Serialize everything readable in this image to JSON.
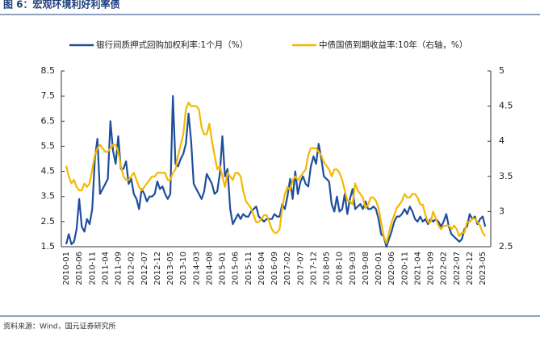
{
  "chart_data": {
    "type": "line",
    "title": "图 6：宏观环境利好利率债",
    "source": "资料来源：Wind，国元证券研究所",
    "categories": [
      "2010-01",
      null,
      null,
      null,
      null,
      "2010-06",
      null,
      null,
      null,
      null,
      "2010-11",
      null,
      null,
      null,
      null,
      "2011-04",
      null,
      null,
      null,
      null,
      "2011-09",
      null,
      null,
      null,
      null,
      "2012-02",
      null,
      null,
      null,
      null,
      "2012-07",
      null,
      null,
      null,
      null,
      "2012-12",
      null,
      null,
      null,
      null,
      "2013-05",
      null,
      null,
      null,
      null,
      "2013-10",
      null,
      null,
      null,
      null,
      "2014-03",
      null,
      null,
      null,
      null,
      "2014-08",
      null,
      null,
      null,
      null,
      "2015-01",
      null,
      null,
      null,
      null,
      "2015-06",
      null,
      null,
      null,
      null,
      "2015-11",
      null,
      null,
      null,
      null,
      "2016-04",
      null,
      null,
      null,
      null,
      "2016-09",
      null,
      null,
      null,
      null,
      "2017-02",
      null,
      null,
      null,
      null,
      "2017-07",
      null,
      null,
      null,
      null,
      "2017-12",
      null,
      null,
      null,
      null,
      "2018-05",
      null,
      null,
      null,
      null,
      "2018-10",
      null,
      null,
      null,
      null,
      "2019-03",
      null,
      null,
      null,
      null,
      "2019-08",
      null,
      null,
      null,
      null,
      "2020-01",
      null,
      null,
      null,
      null,
      "2020-06",
      null,
      null,
      null,
      null,
      "2020-11",
      null,
      null,
      null,
      null,
      "2021-04",
      null,
      null,
      null,
      null,
      "2021-09",
      null,
      null,
      null,
      null,
      "2022-02",
      null,
      null,
      null,
      null,
      "2022-07",
      null,
      null,
      null,
      null,
      "2022-12",
      null,
      null,
      null,
      null,
      "2023-05",
      null
    ],
    "series": [
      {
        "name": "银行间质押式回购加权利率:1个月（%）",
        "color": "#1f4e9c",
        "axis": "y",
        "values": [
          1.6,
          2.0,
          1.6,
          1.7,
          2.2,
          3.4,
          2.3,
          2.1,
          2.6,
          2.4,
          3.0,
          5.0,
          5.8,
          3.6,
          3.8,
          4.0,
          4.2,
          6.5,
          5.3,
          4.8,
          5.9,
          4.6,
          4.6,
          4.9,
          4.0,
          4.2,
          3.6,
          3.4,
          3.0,
          3.8,
          3.6,
          3.3,
          3.5,
          3.5,
          3.6,
          4.1,
          3.8,
          3.9,
          3.6,
          3.4,
          3.6,
          7.5,
          4.8,
          4.7,
          5.0,
          5.2,
          5.6,
          6.8,
          5.7,
          4.0,
          3.8,
          3.6,
          3.4,
          3.7,
          4.4,
          4.2,
          4.0,
          3.6,
          3.7,
          4.4,
          5.9,
          4.3,
          4.6,
          3.0,
          2.4,
          2.6,
          2.8,
          2.6,
          2.8,
          2.7,
          2.7,
          2.9,
          3.0,
          3.1,
          2.7,
          2.6,
          2.5,
          2.6,
          2.6,
          2.6,
          2.8,
          2.7,
          2.7,
          3.2,
          3.0,
          3.5,
          4.2,
          3.4,
          4.5,
          3.6,
          4.1,
          4.3,
          4.0,
          3.9,
          4.7,
          5.1,
          4.8,
          5.6,
          5.0,
          4.3,
          4.2,
          4.1,
          3.2,
          2.9,
          3.5,
          2.9,
          3.0,
          3.6,
          2.8,
          3.4,
          3.8,
          3.0,
          3.1,
          3.2,
          3.0,
          3.3,
          3.0,
          3.0,
          3.1,
          3.0,
          2.6,
          2.0,
          1.9,
          1.5,
          1.8,
          2.1,
          2.5,
          2.7,
          2.7,
          2.8,
          3.0,
          2.8,
          3.1,
          2.9,
          2.6,
          2.5,
          2.7,
          2.5,
          2.6,
          2.4,
          2.6,
          2.5,
          2.6,
          2.5,
          2.3,
          2.5,
          2.8,
          2.3,
          2.0,
          1.9,
          1.8,
          1.7,
          1.8,
          2.2,
          2.3,
          2.8,
          2.6,
          2.7,
          2.4,
          2.6,
          2.7,
          2.3
        ]
      },
      {
        "name": "中债国债到期收益率:10年（右轴，%）",
        "color": "#f5b800",
        "axis": "y2",
        "values": [
          3.65,
          3.5,
          3.4,
          3.45,
          3.35,
          3.3,
          3.3,
          3.4,
          3.35,
          3.4,
          3.6,
          3.8,
          3.9,
          3.95,
          3.9,
          3.85,
          3.85,
          3.9,
          3.95,
          3.95,
          3.85,
          3.65,
          3.5,
          3.45,
          3.45,
          3.5,
          3.55,
          3.45,
          3.35,
          3.3,
          3.35,
          3.4,
          3.45,
          3.5,
          3.5,
          3.55,
          3.55,
          3.55,
          3.55,
          3.45,
          3.45,
          3.55,
          3.6,
          3.8,
          3.95,
          4.1,
          4.45,
          4.55,
          4.5,
          4.5,
          4.5,
          4.45,
          4.2,
          4.1,
          4.1,
          4.25,
          4.0,
          3.8,
          3.6,
          3.65,
          3.5,
          3.35,
          3.55,
          3.5,
          3.45,
          3.55,
          3.55,
          3.5,
          3.3,
          3.15,
          3.1,
          3.05,
          2.95,
          2.85,
          2.85,
          2.9,
          2.95,
          2.95,
          2.85,
          2.75,
          2.7,
          2.7,
          2.75,
          3.05,
          3.25,
          3.35,
          3.3,
          3.45,
          3.5,
          3.45,
          3.5,
          3.55,
          3.6,
          3.8,
          3.9,
          3.9,
          3.9,
          3.85,
          3.8,
          3.7,
          3.65,
          3.6,
          3.5,
          3.6,
          3.6,
          3.55,
          3.45,
          3.3,
          3.15,
          3.15,
          3.1,
          3.4,
          3.3,
          3.25,
          3.2,
          3.05,
          3.1,
          3.2,
          3.2,
          3.15,
          3.05,
          2.85,
          2.65,
          2.55,
          2.7,
          2.85,
          2.95,
          3.05,
          3.1,
          3.15,
          3.25,
          3.2,
          3.2,
          3.25,
          3.25,
          3.2,
          3.1,
          3.1,
          2.95,
          2.85,
          2.85,
          3.0,
          2.9,
          2.8,
          2.75,
          2.8,
          2.8,
          2.8,
          2.75,
          2.8,
          2.75,
          2.65,
          2.7,
          2.7,
          2.85,
          2.85,
          2.9,
          2.9,
          2.85,
          2.8,
          2.7,
          2.65
        ]
      }
    ],
    "ylim": [
      1.5,
      8.5
    ],
    "yticks": [
      1.5,
      2.5,
      3.5,
      4.5,
      5.5,
      6.5,
      7.5,
      8.5
    ],
    "y2lim": [
      2.5,
      5.0
    ],
    "y2ticks": [
      2.5,
      3.0,
      3.5,
      4.0,
      4.5,
      5.0
    ],
    "grid": false
  }
}
